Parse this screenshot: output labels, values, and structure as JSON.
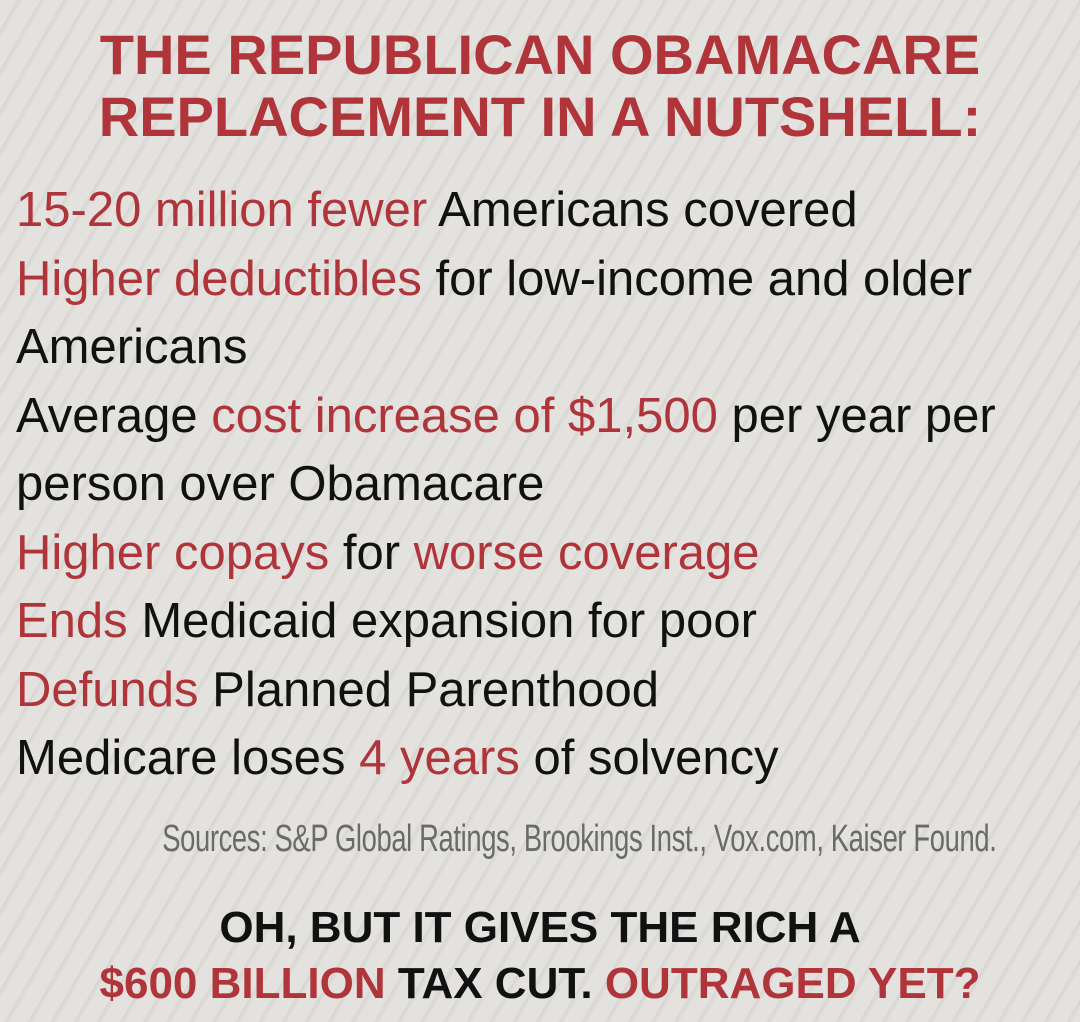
{
  "title": [
    "THE REPUBLICAN OBAMACARE",
    "REPLACEMENT IN A NUTSHELL:"
  ],
  "bullets": [
    {
      "segments": [
        {
          "text": "15-20 million fewer",
          "highlight": true
        },
        {
          "text": "Americans covered",
          "highlight": false
        }
      ]
    },
    {
      "segments": [
        {
          "text": "Higher deductibles",
          "highlight": true
        },
        {
          "text": "for low-income and older Americans",
          "highlight": false
        }
      ]
    },
    {
      "segments": [
        {
          "text": "Average",
          "highlight": false
        },
        {
          "text": "cost increase of $1,500",
          "highlight": true
        },
        {
          "text": "per year per person over Obamacare",
          "highlight": false
        }
      ]
    },
    {
      "segments": [
        {
          "text": "Higher copays",
          "highlight": true
        },
        {
          "text": "for",
          "highlight": false
        },
        {
          "text": "worse coverage",
          "highlight": true
        }
      ]
    },
    {
      "segments": [
        {
          "text": "Ends",
          "highlight": true
        },
        {
          "text": "Medicaid expansion for poor",
          "highlight": false
        }
      ]
    },
    {
      "segments": [
        {
          "text": "Defunds",
          "highlight": true
        },
        {
          "text": "Planned Parenthood",
          "highlight": false
        }
      ]
    },
    {
      "segments": [
        {
          "text": "Medicare loses",
          "highlight": false
        },
        {
          "text": "4 years",
          "highlight": true
        },
        {
          "text": "of solvency",
          "highlight": false
        }
      ]
    }
  ],
  "sources": "Sources: S&P Global Ratings, Brookings Inst., Vox.com, Kaiser Found.",
  "footer": [
    {
      "segments": [
        {
          "text": "OH, BUT IT GIVES THE RICH A",
          "highlight": false
        }
      ]
    },
    {
      "segments": [
        {
          "text": "$600 BILLION",
          "highlight": true
        },
        {
          "text": "TAX CUT.",
          "highlight": false
        },
        {
          "text": "OUTRAGED YET?",
          "highlight": true
        }
      ]
    }
  ],
  "highlight_color": "#b0353b",
  "text_color": "#111111"
}
